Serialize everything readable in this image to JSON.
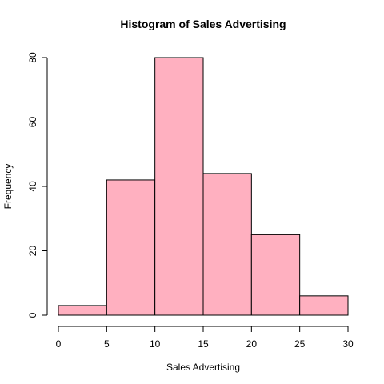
{
  "chart_data": {
    "type": "bar",
    "title": "Histogram of Sales Advertising",
    "xlabel": "Sales Advertising",
    "ylabel": "Frequency",
    "bins": [
      [
        0,
        5
      ],
      [
        5,
        10
      ],
      [
        10,
        15
      ],
      [
        15,
        20
      ],
      [
        20,
        25
      ],
      [
        25,
        30
      ]
    ],
    "values": [
      3,
      42,
      80,
      44,
      25,
      6
    ],
    "xlim": [
      0,
      30
    ],
    "ylim": [
      0,
      80
    ],
    "x_ticks": [
      0,
      5,
      10,
      15,
      20,
      25,
      30
    ],
    "y_ticks": [
      0,
      20,
      40,
      60,
      80
    ],
    "grid": false,
    "bar_color": "#FFB0C0",
    "bar_border_color": "#000000"
  }
}
